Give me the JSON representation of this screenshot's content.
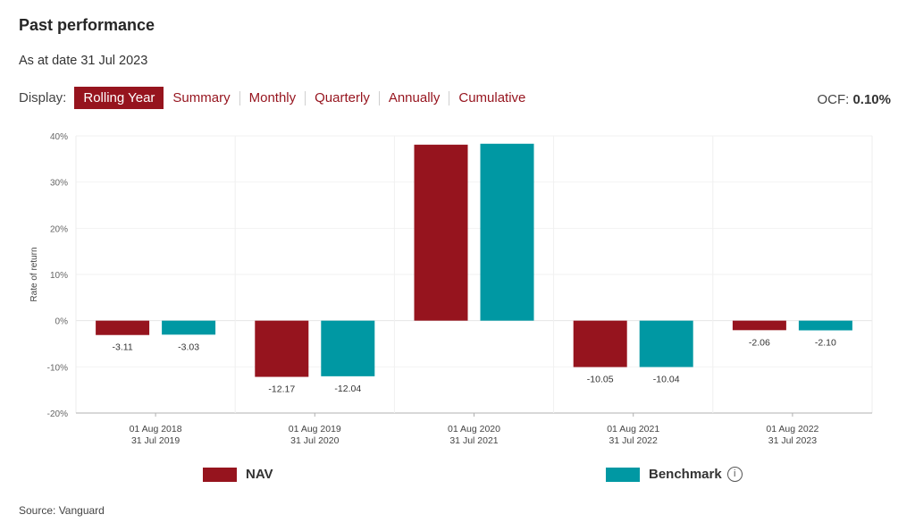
{
  "header": {
    "title": "Past performance",
    "as_at": "As at date 31 Jul 2023"
  },
  "display": {
    "label": "Display:",
    "tabs": [
      {
        "label": "Rolling Year",
        "active": true
      },
      {
        "label": "Summary",
        "active": false
      },
      {
        "label": "Monthly",
        "active": false
      },
      {
        "label": "Quarterly",
        "active": false
      },
      {
        "label": "Annually",
        "active": false
      },
      {
        "label": "Cumulative",
        "active": false
      }
    ]
  },
  "ocf": {
    "label": "OCF:",
    "value": "0.10%"
  },
  "colors": {
    "accent": "#96141e",
    "nav": "#96141e",
    "benchmark": "#0098a3"
  },
  "legend": {
    "nav": "NAV",
    "benchmark": "Benchmark",
    "info_icon": "info-circle-icon"
  },
  "source": "Source: Vanguard",
  "chart_data": {
    "type": "bar",
    "title": "",
    "xlabel": "",
    "ylabel": "Rate of return",
    "ylim": [
      -20,
      40
    ],
    "yticks": [
      -20,
      -10,
      0,
      10,
      20,
      30,
      40
    ],
    "ytick_labels": [
      "-20%",
      "-10%",
      "0%",
      "10%",
      "20%",
      "30%",
      "40%"
    ],
    "grid": true,
    "legend_position": "bottom",
    "categories": [
      [
        "01 Aug 2018",
        "31 Jul 2019"
      ],
      [
        "01 Aug 2019",
        "31 Jul 2020"
      ],
      [
        "01 Aug 2020",
        "31 Jul 2021"
      ],
      [
        "01 Aug 2021",
        "31 Jul 2022"
      ],
      [
        "01 Aug 2022",
        "31 Jul 2023"
      ]
    ],
    "series": [
      {
        "name": "NAV",
        "color": "#96141e",
        "values": [
          -3.11,
          -12.17,
          38.1,
          -10.05,
          -2.06
        ],
        "labels": [
          "-3.11",
          "-12.17",
          "",
          "-10.05",
          "-2.06"
        ]
      },
      {
        "name": "Benchmark",
        "color": "#0098a3",
        "values": [
          -3.03,
          -12.04,
          38.3,
          -10.04,
          -2.1
        ],
        "labels": [
          "-3.03",
          "-12.04",
          "",
          "-10.04",
          "-2.10"
        ]
      }
    ]
  }
}
